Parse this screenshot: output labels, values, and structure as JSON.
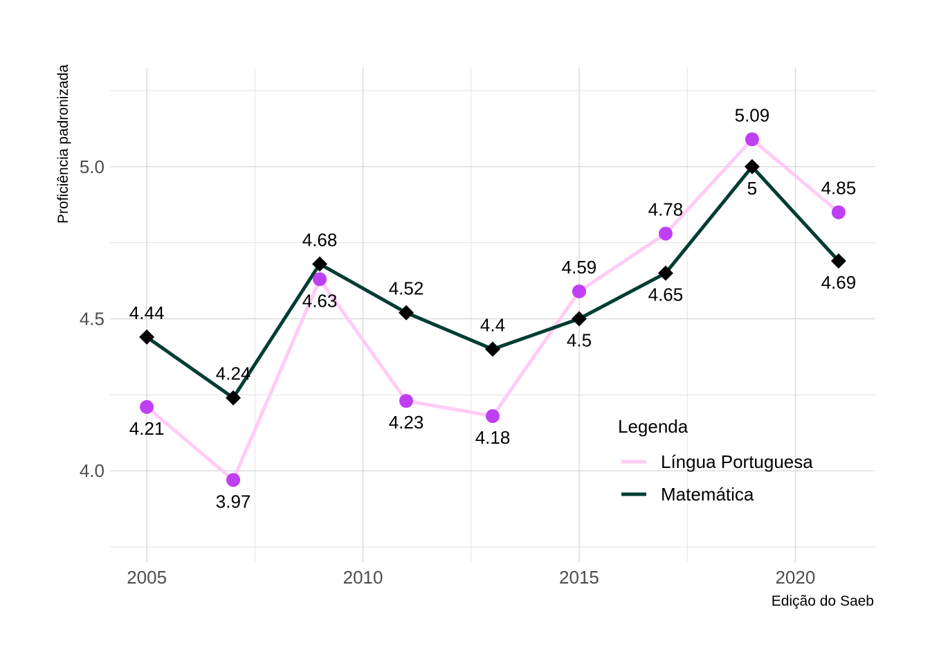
{
  "chart_data": {
    "type": "line",
    "xlabel": "Edição do Saeb",
    "ylabel": "Proficiência padronizada",
    "xlim": [
      2004.15,
      2021.85
    ],
    "ylim": [
      3.7,
      5.325
    ],
    "x_ticks": [
      "2005",
      "2010",
      "2015",
      "2020"
    ],
    "y_ticks": [
      "4.0",
      "4.5",
      "5.0"
    ],
    "grid": true,
    "legend": {
      "title": "Legenda",
      "position": "bottom-right",
      "entries": [
        "Língua Portuguesa",
        "Matemática"
      ]
    },
    "x": [
      2005,
      2007,
      2009,
      2011,
      2013,
      2015,
      2017,
      2019,
      2021
    ],
    "series": [
      {
        "name": "Língua Portuguesa",
        "values": [
          4.21,
          3.97,
          4.63,
          4.23,
          4.18,
          4.59,
          4.78,
          5.09,
          4.85
        ],
        "labels": [
          "4.21",
          "3.97",
          "4.63",
          "4.23",
          "4.18",
          "4.59",
          "4.78",
          "5.09",
          "4.85"
        ],
        "line_color": "#ffccf5",
        "marker_color": "#bf40f2",
        "marker": "circle"
      },
      {
        "name": "Matemática",
        "values": [
          4.44,
          4.24,
          4.68,
          4.52,
          4.4,
          4.5,
          4.65,
          5.0,
          4.69
        ],
        "labels": [
          "4.44",
          "4.24",
          "4.68",
          "4.52",
          "4.4",
          "4.5",
          "4.65",
          "5",
          "4.69"
        ],
        "line_color": "#003d33",
        "marker_color": "#000000",
        "marker": "diamond"
      }
    ]
  }
}
